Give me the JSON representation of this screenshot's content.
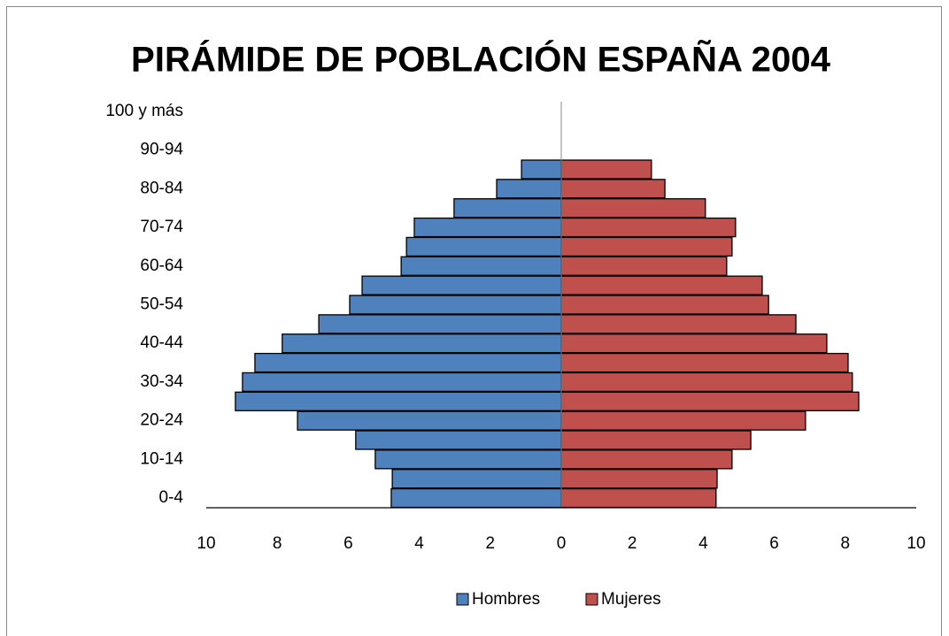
{
  "chart_data": {
    "type": "pyramid",
    "title": "PIRÁMIDE DE POBLACIÓN ESPAÑA 2004",
    "categories": [
      "0-4",
      null,
      "10-14",
      null,
      "20-24",
      null,
      "30-34",
      null,
      "40-44",
      null,
      "50-54",
      null,
      "60-64",
      null,
      "70-74",
      null,
      "80-84",
      null,
      "90-94",
      null,
      "100  y más"
    ],
    "series": [
      {
        "name": "Hombres",
        "color": "#4f81bd",
        "values": [
          -4.79,
          -4.76,
          -5.24,
          -5.79,
          -7.43,
          -9.18,
          -8.98,
          -8.63,
          -7.86,
          -6.83,
          -5.96,
          -5.61,
          -4.51,
          -4.36,
          -4.14,
          -3.02,
          -1.82,
          -1.12,
          0,
          0,
          0
        ]
      },
      {
        "name": "Mujeres",
        "color": "#c0504d",
        "values": [
          4.36,
          4.39,
          4.81,
          5.34,
          6.88,
          8.38,
          8.2,
          8.08,
          7.48,
          6.61,
          5.84,
          5.66,
          4.66,
          4.81,
          4.91,
          4.06,
          2.92,
          2.54,
          0,
          0,
          0
        ]
      }
    ],
    "xlim": [
      -10,
      10
    ],
    "xticks": [
      {
        "value": -10,
        "label": "10"
      },
      {
        "value": -8,
        "label": "8"
      },
      {
        "value": -6,
        "label": "6"
      },
      {
        "value": -4,
        "label": "4"
      },
      {
        "value": -2,
        "label": "2"
      },
      0,
      2,
      4,
      6,
      8,
      10
    ],
    "legend": "bottom"
  }
}
